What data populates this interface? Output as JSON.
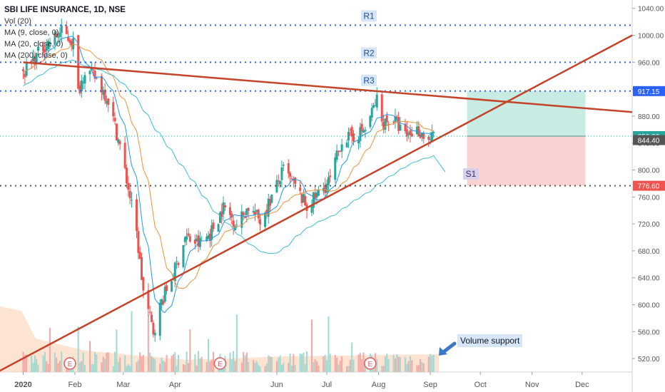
{
  "header": {
    "symbol_title": "SBI LIFE INSURANCE, 1D, NSE",
    "indicators": [
      "Vol (20)",
      "MA (9, close, 0)",
      "MA (20, close, 0)",
      "MA (200, close, 0)"
    ]
  },
  "annotations": {
    "r1": "R1",
    "r2": "R2",
    "r3": "R3",
    "s1": "S1",
    "callout": "Volume support"
  },
  "event_marker_label": "E",
  "colors": {
    "up": "#26a69a",
    "down": "#ef5350",
    "trendline": "#c4442a",
    "level": "#2962ff",
    "support_line": "#555555",
    "ma9": "#2196f3",
    "ma20": "#f0913a",
    "ma200": "#3fbcd4",
    "target_zone": "#c8ebe4",
    "stop_zone": "#fbd2d2",
    "callout_bg": "#d6e6f7"
  },
  "chart_data": {
    "type": "candlestick",
    "title": "SBI LIFE INSURANCE, 1D, NSE",
    "x_ticks": [
      "2020",
      "Feb",
      "Mar",
      "Apr",
      "Jun",
      "Jul",
      "Aug",
      "Sep",
      "Oct",
      "Nov",
      "Dec"
    ],
    "y_ticks": [
      520,
      560,
      600,
      640,
      680,
      720,
      760,
      800,
      840,
      880,
      920,
      960,
      1000,
      1040
    ],
    "ylim": [
      500,
      1045
    ],
    "price_labels": [
      {
        "value": 917.15,
        "text": "917.15",
        "color": "#2962ff"
      },
      {
        "value": 850.3,
        "text": "850.30",
        "color": "#26a69a"
      },
      {
        "value": 844.4,
        "text": "844.40",
        "color": "#555555"
      },
      {
        "value": 776.6,
        "text": "776.60",
        "color": "#ef5350"
      }
    ],
    "resistance_levels": [
      {
        "name": "R1",
        "value": 1015
      },
      {
        "name": "R2",
        "value": 960
      },
      {
        "name": "R3",
        "value": 917.15
      }
    ],
    "support_levels": [
      {
        "name": "S1",
        "value": 776.6
      }
    ],
    "price_path": [
      [
        "2020-01-01",
        945
      ],
      [
        "2020-01-06",
        960
      ],
      [
        "2020-01-14",
        985
      ],
      [
        "2020-01-24",
        1005
      ],
      [
        "2020-01-31",
        990
      ],
      [
        "2020-02-03",
        915
      ],
      [
        "2020-02-07",
        950
      ],
      [
        "2020-02-14",
        935
      ],
      [
        "2020-02-21",
        905
      ],
      [
        "2020-02-28",
        835
      ],
      [
        "2020-03-05",
        760
      ],
      [
        "2020-03-09",
        705
      ],
      [
        "2020-03-13",
        620
      ],
      [
        "2020-03-19",
        560
      ],
      [
        "2020-03-24",
        605
      ],
      [
        "2020-03-31",
        645
      ],
      [
        "2020-04-07",
        700
      ],
      [
        "2020-04-15",
        690
      ],
      [
        "2020-04-22",
        705
      ],
      [
        "2020-04-30",
        745
      ],
      [
        "2020-05-08",
        720
      ],
      [
        "2020-05-15",
        745
      ],
      [
        "2020-05-22",
        725
      ],
      [
        "2020-05-29",
        760
      ],
      [
        "2020-06-05",
        800
      ],
      [
        "2020-06-12",
        775
      ],
      [
        "2020-06-19",
        745
      ],
      [
        "2020-06-26",
        765
      ],
      [
        "2020-07-03",
        785
      ],
      [
        "2020-07-10",
        845
      ],
      [
        "2020-07-17",
        850
      ],
      [
        "2020-07-24",
        860
      ],
      [
        "2020-07-31",
        905
      ],
      [
        "2020-08-03",
        870
      ],
      [
        "2020-08-10",
        875
      ],
      [
        "2020-08-17",
        850
      ],
      [
        "2020-08-24",
        860
      ],
      [
        "2020-08-31",
        845
      ],
      [
        "2020-09-03",
        850
      ]
    ],
    "trendlines": [
      {
        "name": "descending resistance",
        "from": [
          "2020-01-01",
          960
        ],
        "to": [
          "2020-12-31",
          886
        ]
      },
      {
        "name": "ascending support",
        "from": [
          "2019-12-15",
          498
        ],
        "to": [
          "2020-12-31",
          1000
        ]
      }
    ],
    "position_zones": {
      "entry": 850.3,
      "target": 917.15,
      "stop": 776.6,
      "from": "2020-09-23",
      "to": "2020-12-03"
    },
    "earnings_markers": [
      "2020-01-29",
      "2020-04-28",
      "2020-07-27"
    ]
  }
}
